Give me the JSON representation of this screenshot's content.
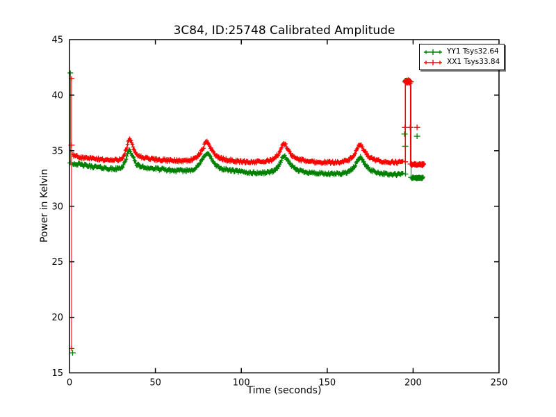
{
  "figure": {
    "background": "#ffffff"
  },
  "chart_data": {
    "type": "line",
    "title": "3C84, ID:25748 Calibrated Amplitude",
    "xlabel": "Time (seconds)",
    "ylabel": "Power in Kelvin",
    "xlim": [
      0,
      250
    ],
    "ylim": [
      15,
      45
    ],
    "xticks": [
      0,
      50,
      100,
      150,
      200,
      250
    ],
    "yticks": [
      15,
      20,
      25,
      30,
      35,
      40,
      45
    ],
    "grid": false,
    "marker": "+",
    "legend": {
      "position": "upper right",
      "entries": [
        {
          "label": "YY1 Tsys32.64",
          "color": "#008000"
        },
        {
          "label": "XX1 Tsys33.84",
          "color": "#ff0000"
        }
      ]
    },
    "series": [
      {
        "name": "YY1 Tsys32.64",
        "color": "#008000",
        "segments": [
          {
            "type": "vline",
            "t": 0.5,
            "v_top": 42.0,
            "v_bottom": 33.9
          },
          {
            "type": "points",
            "pts": [
              [
                1.8,
                16.8
              ]
            ]
          },
          {
            "type": "noisy",
            "noise": 0.13,
            "step": 0.4,
            "pts": [
              [
                2,
                33.85
              ],
              [
                6,
                33.75
              ],
              [
                12,
                33.6
              ],
              [
                20,
                33.45
              ],
              [
                27,
                33.35
              ],
              [
                31,
                33.6
              ],
              [
                33,
                34.3
              ],
              [
                35,
                35.0
              ],
              [
                37,
                34.4
              ],
              [
                39,
                33.8
              ],
              [
                42,
                33.55
              ],
              [
                48,
                33.4
              ],
              [
                55,
                33.3
              ],
              [
                62,
                33.2
              ],
              [
                70,
                33.25
              ],
              [
                74,
                33.5
              ],
              [
                77,
                34.1
              ],
              [
                80,
                34.8
              ],
              [
                82,
                34.4
              ],
              [
                85,
                33.7
              ],
              [
                88,
                33.4
              ],
              [
                95,
                33.2
              ],
              [
                103,
                33.05
              ],
              [
                112,
                33.0
              ],
              [
                118,
                33.15
              ],
              [
                121,
                33.5
              ],
              [
                125,
                34.5
              ],
              [
                127,
                34.1
              ],
              [
                130,
                33.5
              ],
              [
                134,
                33.2
              ],
              [
                142,
                33.0
              ],
              [
                150,
                32.9
              ],
              [
                158,
                32.95
              ],
              [
                163,
                33.15
              ],
              [
                166,
                33.6
              ],
              [
                169,
                34.4
              ],
              [
                171,
                34.0
              ],
              [
                174,
                33.4
              ],
              [
                178,
                33.1
              ],
              [
                184,
                32.9
              ],
              [
                190,
                32.85
              ],
              [
                194,
                32.9
              ]
            ]
          },
          {
            "type": "vline",
            "t": 195.6,
            "v_top": 41.3,
            "v_bottom": 32.9
          },
          {
            "type": "cluster",
            "t0": 195.4,
            "t1": 198.4,
            "v": 41.3,
            "noise": 0.12,
            "step": 0.15
          },
          {
            "type": "points",
            "pts": [
              [
                195.0,
                36.5
              ],
              [
                195.4,
                35.4
              ],
              [
                202.3,
                36.3
              ]
            ]
          },
          {
            "type": "vline",
            "t": 198.8,
            "v_top": 41.2,
            "v_bottom": 32.6
          },
          {
            "type": "cluster",
            "t0": 199.2,
            "t1": 206.0,
            "v": 32.55,
            "noise": 0.1,
            "step": 0.18
          }
        ]
      },
      {
        "name": "XX1 Tsys33.84",
        "color": "#ff0000",
        "segments": [
          {
            "type": "vline",
            "t": 1.2,
            "v_top": 41.5,
            "v_bottom": 17.2
          },
          {
            "type": "points",
            "pts": [
              [
                1.2,
                35.5
              ]
            ]
          },
          {
            "type": "noisy",
            "noise": 0.13,
            "step": 0.4,
            "pts": [
              [
                2,
                34.55
              ],
              [
                6,
                34.4
              ],
              [
                12,
                34.3
              ],
              [
                20,
                34.2
              ],
              [
                27,
                34.15
              ],
              [
                31,
                34.4
              ],
              [
                33,
                35.1
              ],
              [
                35,
                36.0
              ],
              [
                37,
                35.3
              ],
              [
                39,
                34.7
              ],
              [
                42,
                34.4
              ],
              [
                48,
                34.25
              ],
              [
                55,
                34.15
              ],
              [
                62,
                34.1
              ],
              [
                70,
                34.15
              ],
              [
                74,
                34.4
              ],
              [
                77,
                35.0
              ],
              [
                80,
                35.8
              ],
              [
                82,
                35.3
              ],
              [
                85,
                34.6
              ],
              [
                88,
                34.3
              ],
              [
                95,
                34.1
              ],
              [
                103,
                34.0
              ],
              [
                112,
                34.0
              ],
              [
                118,
                34.2
              ],
              [
                121,
                34.6
              ],
              [
                125,
                35.6
              ],
              [
                127,
                35.1
              ],
              [
                130,
                34.5
              ],
              [
                134,
                34.2
              ],
              [
                142,
                34.0
              ],
              [
                150,
                33.95
              ],
              [
                158,
                34.0
              ],
              [
                163,
                34.2
              ],
              [
                166,
                34.7
              ],
              [
                169,
                35.5
              ],
              [
                171,
                35.1
              ],
              [
                174,
                34.5
              ],
              [
                178,
                34.15
              ],
              [
                184,
                34.0
              ],
              [
                190,
                33.95
              ],
              [
                194,
                34.0
              ]
            ]
          },
          {
            "type": "vline",
            "t": 195.4,
            "v_top": 41.2,
            "v_bottom": 34.0
          },
          {
            "type": "vline",
            "t": 198.4,
            "v_top": 41.2,
            "v_bottom": 33.8
          },
          {
            "type": "cluster",
            "t0": 195.2,
            "t1": 198.6,
            "v": 41.2,
            "noise": 0.15,
            "step": 0.12
          },
          {
            "type": "points",
            "pts": [
              [
                195.3,
                37.1
              ],
              [
                198.3,
                37.1
              ],
              [
                202.3,
                37.1
              ]
            ]
          },
          {
            "type": "cluster",
            "t0": 199.0,
            "t1": 206.5,
            "v": 33.75,
            "noise": 0.12,
            "step": 0.15
          }
        ]
      }
    ]
  }
}
